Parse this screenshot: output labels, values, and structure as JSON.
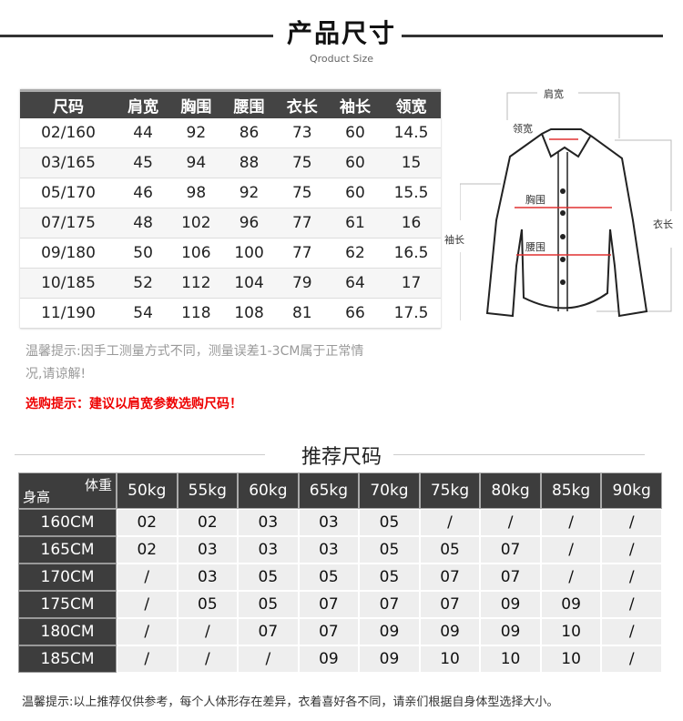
{
  "header": {
    "title": "产品尺寸",
    "subtitle": "Qroduct Size"
  },
  "size_table": {
    "columns": [
      "尺码",
      "肩宽",
      "胸围",
      "腰围",
      "衣长",
      "袖长",
      "领宽"
    ],
    "rows": [
      [
        "02/160",
        "44",
        "92",
        "86",
        "73",
        "60",
        "14.5"
      ],
      [
        "03/165",
        "45",
        "94",
        "88",
        "75",
        "60",
        "15"
      ],
      [
        "05/170",
        "46",
        "98",
        "92",
        "75",
        "60",
        "15.5"
      ],
      [
        "07/175",
        "48",
        "102",
        "96",
        "77",
        "61",
        "16"
      ],
      [
        "09/180",
        "50",
        "106",
        "100",
        "77",
        "62",
        "16.5"
      ],
      [
        "10/185",
        "52",
        "112",
        "104",
        "79",
        "64",
        "17"
      ],
      [
        "11/190",
        "54",
        "118",
        "108",
        "81",
        "66",
        "17.5"
      ]
    ]
  },
  "notes": {
    "measure_line1": "温馨提示:因手工测量方式不同，测量误差1-3CM属于正常情",
    "measure_line2": "况,请谅解!",
    "buy_tip": "选购提示：建议以肩宽参数选购尺码！",
    "footer": "温馨提示:以上推荐仅供参考，每个人体形存在差异，衣着喜好各不同，请亲们根据自身体型选择大小。"
  },
  "diagram": {
    "shoulder": "肩宽",
    "collar": "领宽",
    "chest": "胸围",
    "waist": "腰围",
    "length": "衣长",
    "sleeve": "袖长",
    "accent_color": "#e03030"
  },
  "recommend": {
    "title": "推荐尺码",
    "corner_weight": "体重",
    "corner_height": "身高",
    "weights": [
      "50kg",
      "55kg",
      "60kg",
      "65kg",
      "70kg",
      "75kg",
      "80kg",
      "85kg",
      "90kg"
    ],
    "rows": [
      {
        "height": "160CM",
        "sizes": [
          "02",
          "02",
          "03",
          "03",
          "05",
          "/",
          "/",
          "/",
          "/"
        ]
      },
      {
        "height": "165CM",
        "sizes": [
          "02",
          "03",
          "03",
          "03",
          "05",
          "05",
          "07",
          "/",
          "/"
        ]
      },
      {
        "height": "170CM",
        "sizes": [
          "/",
          "03",
          "05",
          "05",
          "05",
          "07",
          "07",
          "/",
          "/"
        ]
      },
      {
        "height": "175CM",
        "sizes": [
          "/",
          "05",
          "05",
          "07",
          "07",
          "07",
          "09",
          "09",
          "/"
        ]
      },
      {
        "height": "180CM",
        "sizes": [
          "/",
          "/",
          "07",
          "07",
          "09",
          "09",
          "09",
          "10",
          "/"
        ]
      },
      {
        "height": "185CM",
        "sizes": [
          "/",
          "/",
          "/",
          "09",
          "09",
          "10",
          "10",
          "10",
          "/"
        ]
      }
    ]
  }
}
